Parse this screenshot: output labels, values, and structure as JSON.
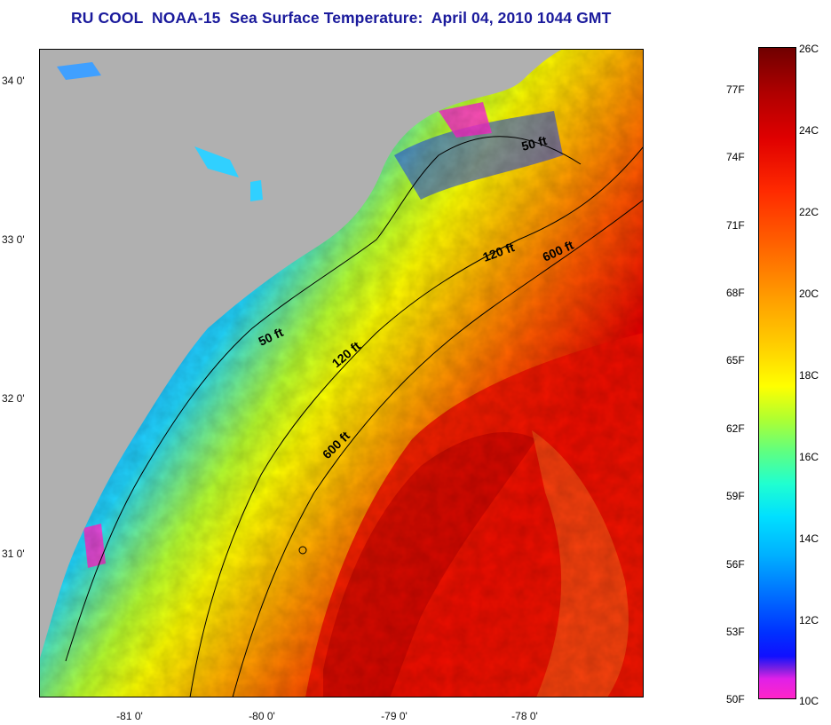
{
  "title": "RU COOL  NOAA-15  Sea Surface Temperature:  April 04, 2010 1044 GMT",
  "map": {
    "region": "South Carolina / Georgia coast",
    "land_color": "#b0b0b0",
    "lat_ticks": [
      "34 0'",
      "33 0'",
      "32 0'",
      "31 0'"
    ],
    "lon_ticks": [
      "-81 0'",
      "-80 0'",
      "-79 0'",
      "-78 0'"
    ],
    "contour_labels": [
      "50 ft",
      "120 ft",
      "600 ft",
      "50 ft",
      "120 ft",
      "600 ft"
    ]
  },
  "colorbar": {
    "celsius_labels": [
      "26C",
      "24C",
      "22C",
      "20C",
      "18C",
      "16C",
      "14C",
      "12C",
      "10C"
    ],
    "fahrenheit_labels": [
      "77F",
      "74F",
      "71F",
      "68F",
      "65F",
      "62F",
      "59F",
      "56F",
      "53F",
      "50F"
    ],
    "colors": [
      "#700000",
      "#e00000",
      "#ff6000",
      "#ffff00",
      "#60ff80",
      "#00e0ff",
      "#0070ff",
      "#1010ff",
      "#ff25c8"
    ]
  }
}
